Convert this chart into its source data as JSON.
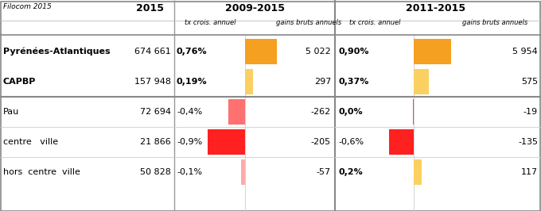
{
  "title_cell": "Filocom 2015",
  "col_2015": "2015",
  "col_2009_main": "2009-2015",
  "col_2011_main": "2011-2015",
  "sub_tx": "tx crois. annuel",
  "sub_gains": "gains bruts annuels",
  "rows": [
    {
      "name": "Pyrénées-Atlantiques",
      "bold": true,
      "indent": false,
      "value2015": "674 661",
      "tx_2009": "0,76%",
      "tx_2009_bold": true,
      "bar_2009_color": "#F5A020",
      "bar_2009_val": 0.76,
      "gains_2009": "5 022",
      "tx_2011": "0,90%",
      "tx_2011_bold": true,
      "bar_2011_color": "#F5A020",
      "bar_2011_val": 0.9,
      "gains_2011": "5 954",
      "group": "top"
    },
    {
      "name": "CAPBP",
      "bold": true,
      "indent": false,
      "value2015": "157 948",
      "tx_2009": "0,19%",
      "tx_2009_bold": true,
      "bar_2009_color": "#FAD060",
      "bar_2009_val": 0.19,
      "gains_2009": "297",
      "tx_2011": "0,37%",
      "tx_2011_bold": true,
      "bar_2011_color": "#FAD060",
      "bar_2011_val": 0.37,
      "gains_2011": "575",
      "group": "top"
    },
    {
      "name": "Pau",
      "bold": false,
      "indent": false,
      "value2015": "72 694",
      "tx_2009": "-0,4%",
      "tx_2009_bold": false,
      "bar_2009_color": "#FF7070",
      "bar_2009_val": -0.4,
      "gains_2009": "-262",
      "tx_2011": "0,0%",
      "tx_2011_bold": true,
      "bar_2011_color": "#FF4444",
      "bar_2011_val": -0.02,
      "gains_2011": "-19",
      "group": "bottom"
    },
    {
      "name": "centre   ville",
      "bold": false,
      "indent": true,
      "value2015": "21 866",
      "tx_2009": "-0,9%",
      "tx_2009_bold": false,
      "bar_2009_color": "#FF2020",
      "bar_2009_val": -0.9,
      "gains_2009": "-205",
      "tx_2011": "-0,6%",
      "tx_2011_bold": false,
      "bar_2011_color": "#FF2020",
      "bar_2011_val": -0.6,
      "gains_2011": "-135",
      "group": "bottom"
    },
    {
      "name": "hors  centre  ville",
      "bold": false,
      "indent": true,
      "value2015": "50 828",
      "tx_2009": "-0,1%",
      "tx_2009_bold": false,
      "bar_2009_color": "#FFAAAA",
      "bar_2009_val": -0.1,
      "gains_2009": "-57",
      "tx_2011": "0,2%",
      "tx_2011_bold": true,
      "bar_2011_color": "#FAD060",
      "bar_2011_val": 0.2,
      "gains_2011": "117",
      "group": "bottom"
    }
  ],
  "bg_color": "#FFFFFF"
}
